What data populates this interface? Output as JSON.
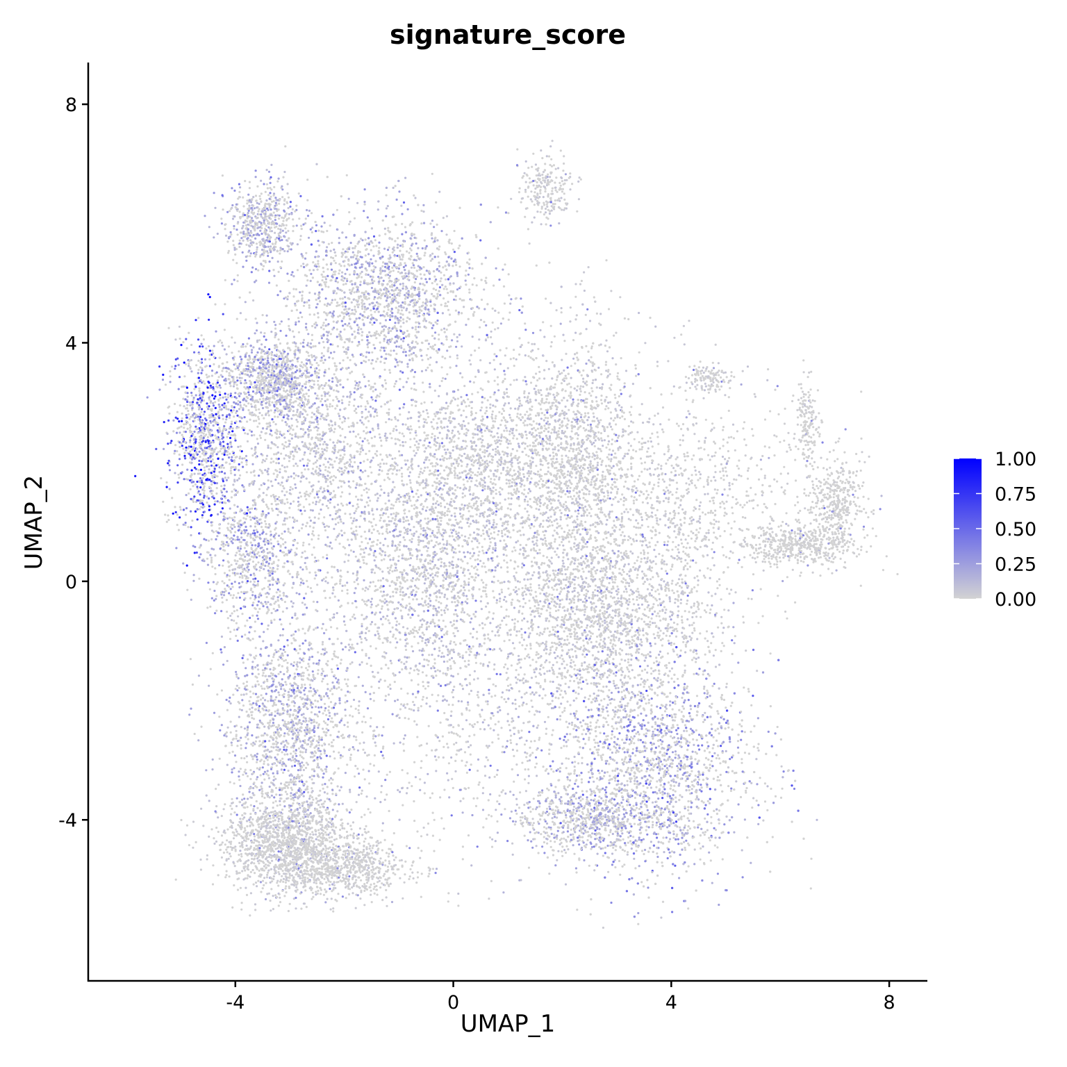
{
  "chart_data": {
    "type": "scatter",
    "title": "signature_score",
    "xlabel": "UMAP_1",
    "ylabel": "UMAP_2",
    "xlim": [
      -6.7,
      8.7
    ],
    "ylim": [
      -6.7,
      8.7
    ],
    "x_ticks": [
      -4,
      0,
      4,
      8
    ],
    "x_tick_labels": [
      "-4",
      "0",
      "4",
      "8"
    ],
    "y_ticks": [
      -4,
      0,
      4,
      8
    ],
    "y_tick_labels": [
      "-4",
      "0",
      "4",
      "8"
    ],
    "grid": false,
    "legend_placement": "right",
    "color_scale": {
      "low_color": "#d3d3d3",
      "high_color": "#0000ff",
      "min": 0,
      "max": 1,
      "ticks": [
        "0.00",
        "0.25",
        "0.50",
        "0.75",
        "1.00"
      ]
    },
    "clusters": [
      {
        "cx": -4.55,
        "cy": 2.4,
        "sx": 0.32,
        "sy": 0.75,
        "n": 900,
        "score": 0.6
      },
      {
        "cx": -3.3,
        "cy": 3.4,
        "sx": 0.45,
        "sy": 0.35,
        "n": 900,
        "score": 0.25
      },
      {
        "cx": -3.5,
        "cy": 6.0,
        "sx": 0.35,
        "sy": 0.35,
        "n": 550,
        "score": 0.2
      },
      {
        "cx": -1.3,
        "cy": 4.8,
        "sx": 0.9,
        "sy": 0.7,
        "n": 2100,
        "score": 0.2
      },
      {
        "cx": -3.7,
        "cy": 0.4,
        "sx": 0.45,
        "sy": 0.6,
        "n": 700,
        "score": 0.25
      },
      {
        "cx": -2.6,
        "cy": 2.2,
        "sx": 0.8,
        "sy": 0.8,
        "n": 1100,
        "score": 0.12
      },
      {
        "cx": -0.6,
        "cy": 0.1,
        "sx": 0.9,
        "sy": 1.0,
        "n": 2000,
        "score": 0.12
      },
      {
        "cx": 0.4,
        "cy": 2.0,
        "sx": 0.9,
        "sy": 0.8,
        "n": 1400,
        "score": 0.08
      },
      {
        "cx": 2.2,
        "cy": 1.9,
        "sx": 0.6,
        "sy": 1.2,
        "n": 1900,
        "score": 0.06
      },
      {
        "cx": 2.6,
        "cy": -0.7,
        "sx": 0.9,
        "sy": 0.8,
        "n": 1600,
        "score": 0.08
      },
      {
        "cx": 3.7,
        "cy": -3.1,
        "sx": 0.9,
        "sy": 0.9,
        "n": 2300,
        "score": 0.28
      },
      {
        "cx": 2.5,
        "cy": -4.0,
        "sx": 0.7,
        "sy": 0.3,
        "n": 700,
        "score": 0.2
      },
      {
        "cx": -3.0,
        "cy": -2.5,
        "sx": 0.6,
        "sy": 1.0,
        "n": 1600,
        "score": 0.2
      },
      {
        "cx": -3.1,
        "cy": -4.4,
        "sx": 0.6,
        "sy": 0.4,
        "n": 1300,
        "score": 0.04
      },
      {
        "cx": -2.0,
        "cy": -4.8,
        "sx": 0.6,
        "sy": 0.25,
        "n": 700,
        "score": 0.03
      },
      {
        "cx": 1.7,
        "cy": 6.6,
        "sx": 0.25,
        "sy": 0.28,
        "n": 220,
        "score": 0.05
      },
      {
        "cx": 4.7,
        "cy": 3.4,
        "sx": 0.2,
        "sy": 0.12,
        "n": 120,
        "score": 0.05
      },
      {
        "cx": 7.0,
        "cy": 1.3,
        "sx": 0.25,
        "sy": 0.4,
        "n": 400,
        "score": 0.02
      },
      {
        "cx": 6.3,
        "cy": 0.6,
        "sx": 0.5,
        "sy": 0.18,
        "n": 450,
        "score": 0.02
      },
      {
        "cx": 6.5,
        "cy": 2.7,
        "sx": 0.1,
        "sy": 0.35,
        "n": 150,
        "score": 0.02
      },
      {
        "cx": 5.6,
        "cy": 1.5,
        "sx": 0.8,
        "sy": 0.8,
        "n": 220,
        "score": 0.02
      },
      {
        "cx": 4.0,
        "cy": 1.0,
        "sx": 0.7,
        "sy": 1.2,
        "n": 800,
        "score": 0.05
      },
      {
        "cx": 0.5,
        "cy": -2.5,
        "sx": 1.2,
        "sy": 1.0,
        "n": 600,
        "score": 0.1
      }
    ]
  }
}
